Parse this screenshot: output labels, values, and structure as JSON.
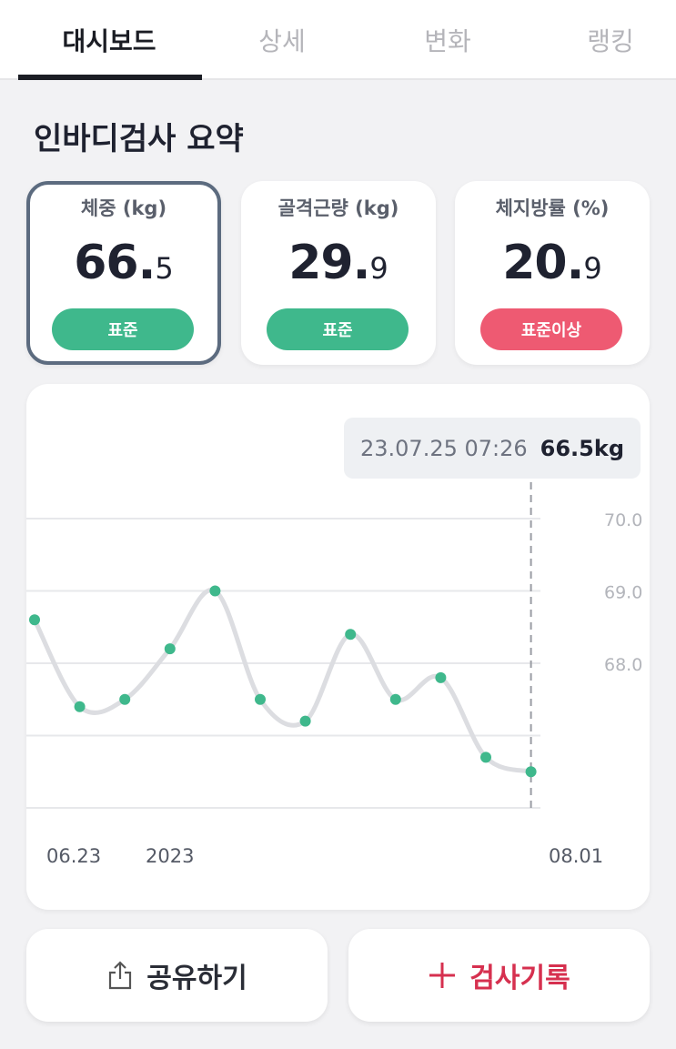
{
  "tabs": [
    {
      "label": "대시보드",
      "active": true
    },
    {
      "label": "상세",
      "active": false
    },
    {
      "label": "변화",
      "active": false
    },
    {
      "label": "랭킹",
      "active": false
    }
  ],
  "section_title": "인바디검사 요약",
  "cards": [
    {
      "label": "체중 (kg)",
      "int": "66.",
      "dec": "5",
      "badge": "표준",
      "badge_color": "#3fb88c",
      "selected": true
    },
    {
      "label": "골격근량 (kg)",
      "int": "29.",
      "dec": "9",
      "badge": "표준",
      "badge_color": "#3fb88c",
      "selected": false
    },
    {
      "label": "체지방률 (%)",
      "int": "20.",
      "dec": "9",
      "badge": "표준이상",
      "badge_color": "#ee5a72",
      "selected": false
    }
  ],
  "tooltip": {
    "date": "23.07.25 07:26",
    "value": "66.5kg"
  },
  "chart_data": {
    "type": "line",
    "y_ticks": [
      "70.0",
      "69.0",
      "68.0"
    ],
    "ylim": [
      66.0,
      70.0
    ],
    "values": [
      68.6,
      67.4,
      67.5,
      68.2,
      69.0,
      67.5,
      67.2,
      68.4,
      67.5,
      67.8,
      66.7,
      66.5
    ],
    "x_labels": [
      "06.23",
      "2023",
      "08.01"
    ],
    "highlight_index": 11,
    "line_color": "#dcdde1",
    "point_color": "#3fb88c",
    "grid": true
  },
  "buttons": {
    "share_label": "공유하기",
    "share_icon": "share-icon",
    "record_label": "검사기록",
    "record_icon": "plus-icon"
  }
}
